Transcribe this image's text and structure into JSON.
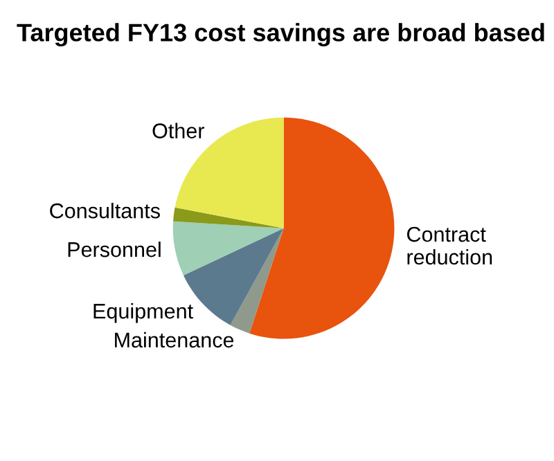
{
  "chart_data": {
    "type": "pie",
    "title": "Targeted FY13 cost savings are broad based",
    "categories": [
      "Contract\nreduction",
      "Maintenance",
      "Equipment",
      "Personnel",
      "Consultants",
      "Other"
    ],
    "values": [
      55,
      3,
      10,
      8,
      2,
      22
    ],
    "colors": [
      "#e8530e",
      "#8f9a8c",
      "#5b7a8e",
      "#9fcfb4",
      "#8a9a1a",
      "#e8e851"
    ],
    "legend": false
  }
}
